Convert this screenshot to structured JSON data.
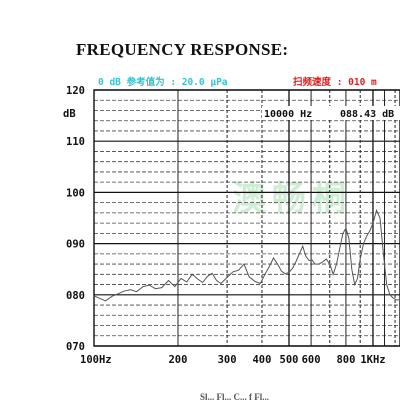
{
  "page": {
    "title": "FREQUENCY RESPONSE:",
    "reference_text": "0 dB 参考值为 : 20.0 μPa",
    "sweep_speed_text": "扫频速度 : 010 m",
    "readout_freq": "10000 Hz",
    "readout_level": "088.43 dB",
    "watermark": "澳畅桐",
    "footer_fragment": "Sl... Fl... C... f Fl..."
  },
  "colors": {
    "reference_text": "#33c4d6",
    "sweep_speed_text": "#e02020",
    "curve": "#555555",
    "grid": "#222222",
    "watermark": "#a8e0b4"
  },
  "chart_data": {
    "type": "line",
    "title": "FREQUENCY RESPONSE:",
    "xlabel": "",
    "ylabel": "dB",
    "x_scale": "log",
    "xlim": [
      100,
      1250
    ],
    "ylim": [
      70,
      120
    ],
    "y_ticks": [
      120,
      110,
      100,
      90,
      80,
      70
    ],
    "y_tick_labels": [
      "120",
      "110",
      "100",
      "090",
      "080",
      "070"
    ],
    "x_ticks": [
      100,
      200,
      300,
      400,
      500,
      600,
      800,
      1000
    ],
    "x_tick_labels": [
      "100Hz",
      "200",
      "300",
      "400",
      "500",
      "600",
      "800",
      "1KHz"
    ],
    "grid": true,
    "series": [
      {
        "x": [
          100,
          105,
          110,
          116,
          122,
          128,
          135,
          142,
          150,
          158,
          166,
          175,
          185,
          195,
          205,
          215,
          225,
          235,
          245,
          255,
          265,
          275,
          285,
          300,
          315,
          330,
          345,
          360,
          378,
          395,
          410,
          425,
          440,
          455,
          470,
          485,
          500,
          515,
          530,
          545,
          560,
          575,
          590,
          605,
          620,
          640,
          660,
          680,
          700,
          720,
          740,
          760,
          780,
          800,
          820,
          840,
          860,
          880,
          900,
          925,
          950,
          975,
          1000,
          1030,
          1060,
          1090,
          1120,
          1150,
          1180,
          1210,
          1240
        ],
        "y": [
          79.8,
          79.3,
          78.8,
          79.7,
          80.2,
          80.7,
          81.0,
          80.6,
          81.6,
          81.9,
          81.2,
          81.4,
          82.8,
          81.6,
          83.2,
          82.5,
          84.0,
          83.1,
          82.4,
          83.6,
          84.2,
          82.8,
          82.2,
          83.4,
          84.5,
          84.8,
          86.0,
          83.5,
          82.6,
          82.2,
          84.0,
          85.5,
          87.2,
          86.0,
          84.6,
          84.1,
          84.4,
          85.2,
          86.5,
          88.0,
          89.5,
          87.5,
          86.7,
          86.8,
          86.0,
          86.0,
          86.4,
          87.0,
          86.0,
          84.0,
          86.0,
          89.0,
          92.0,
          93.0,
          91.0,
          85.0,
          82.0,
          83.2,
          87.0,
          90.0,
          91.5,
          92.5,
          94.0,
          96.5,
          95.0,
          88.0,
          82.0,
          80.0,
          79.4,
          79.0,
          79.0
        ]
      }
    ]
  }
}
